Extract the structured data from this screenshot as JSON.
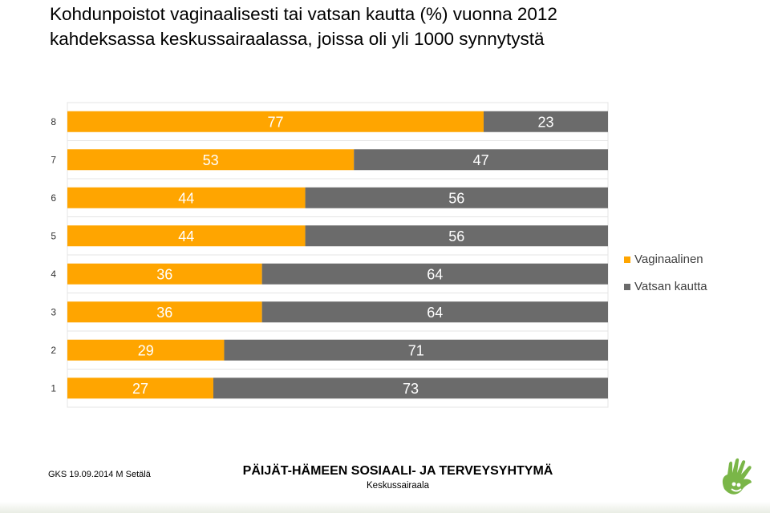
{
  "title": {
    "line1": "Kohdunpoistot vaginaalisesti tai vatsan kautta (%) vuonna 2012",
    "line2": "kahdeksassa keskussairaalassa, joissa oli yli 1000 synnytystä"
  },
  "footer": {
    "left": "GKS 19.09.2014 M Setälä",
    "org": "PÄIJÄT-HÄMEEN SOSIAALI- JA TERVEYSYHTYMÄ",
    "unit": "Keskussairaala"
  },
  "colors": {
    "vaginaalinen": "#FFA500",
    "vatsan": "#6B6B6B",
    "grid": "#e4e4e4"
  },
  "chart_data": {
    "type": "bar",
    "orientation": "horizontal",
    "stacked": true,
    "percent": true,
    "categories": [
      "8",
      "7",
      "6",
      "5",
      "4",
      "3",
      "2",
      "1"
    ],
    "series": [
      {
        "name": "Vaginaalinen",
        "values": [
          77,
          53,
          44,
          44,
          36,
          36,
          29,
          27
        ]
      },
      {
        "name": "Vatsan kautta",
        "values": [
          23,
          47,
          56,
          56,
          64,
          64,
          71,
          73
        ]
      }
    ],
    "xlim": [
      0,
      100
    ],
    "legend": "right",
    "data_labels": true,
    "grid": true
  }
}
